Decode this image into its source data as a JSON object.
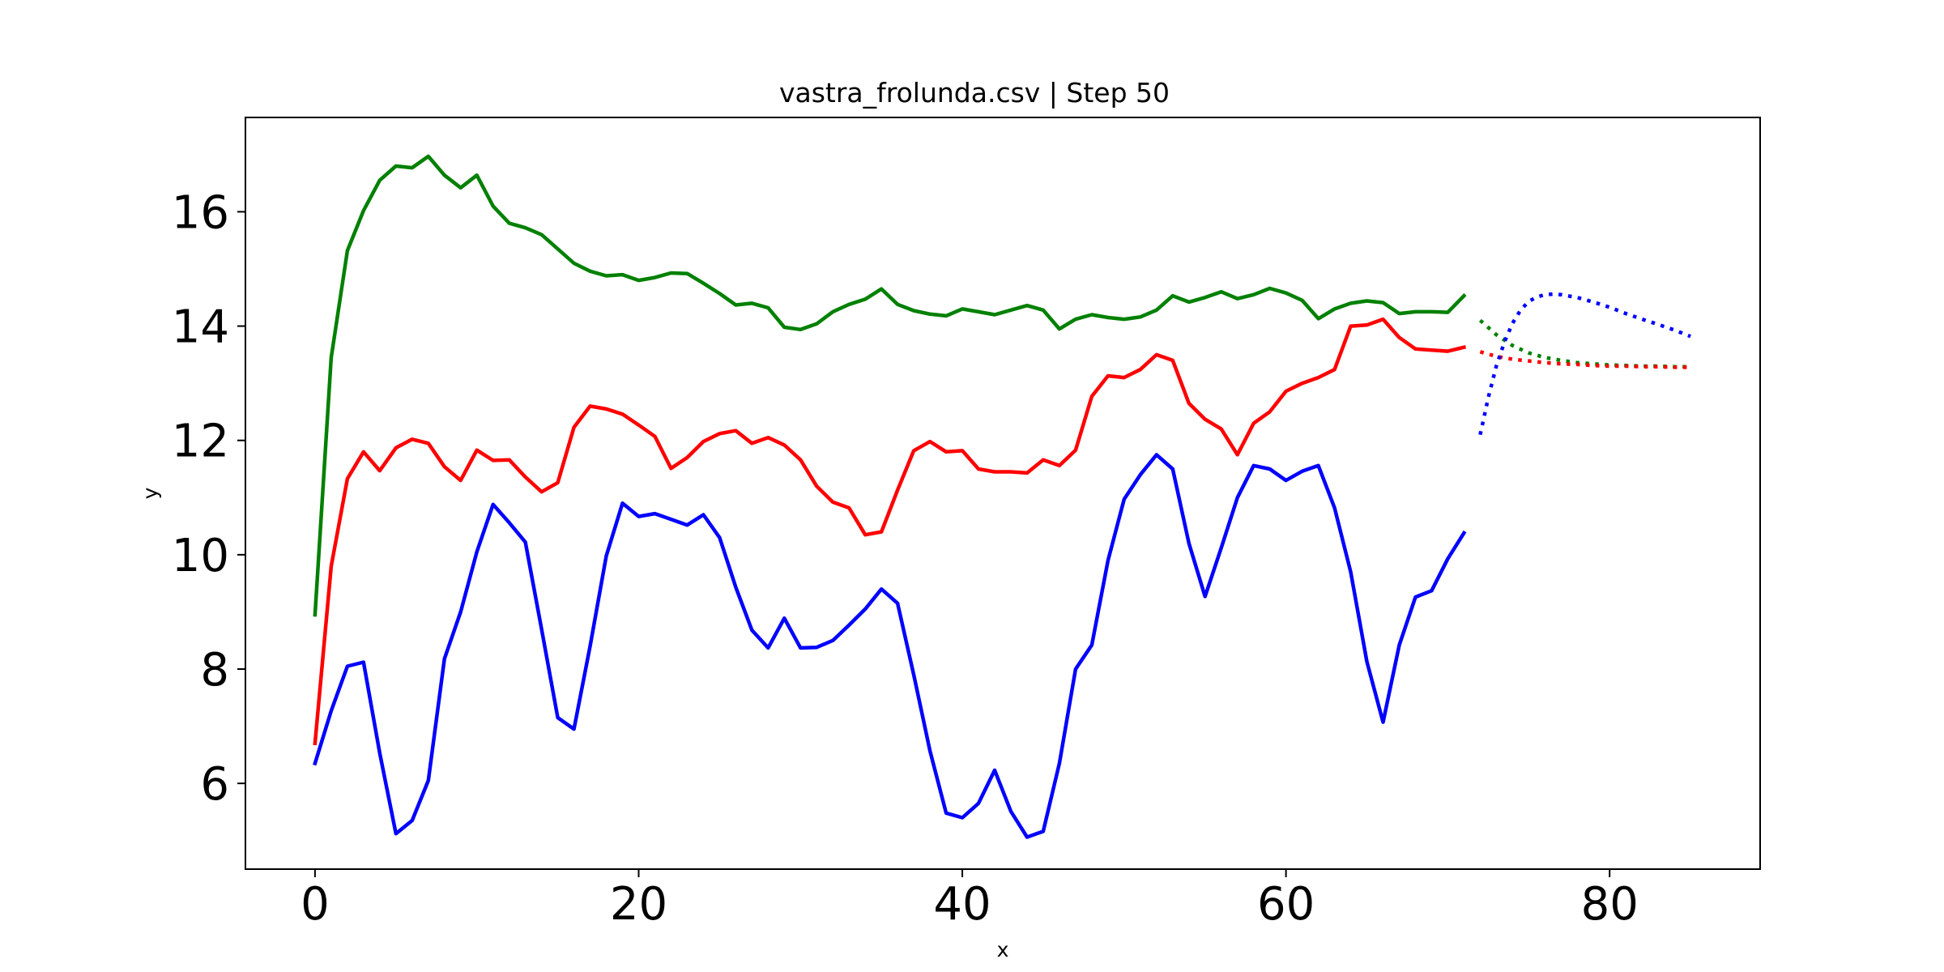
{
  "chart_data": {
    "type": "line",
    "title": "vastra_frolunda.csv | Step 50",
    "xlabel": "x",
    "ylabel": "y",
    "xlim": [
      -4.3,
      89.3
    ],
    "ylim": [
      4.5,
      17.65
    ],
    "xticks": [
      0,
      20,
      40,
      60,
      80
    ],
    "yticks": [
      6,
      8,
      10,
      12,
      14,
      16
    ],
    "grid": false,
    "legend": "none",
    "series": [
      {
        "color": "#008000",
        "style": "solid",
        "x": [
          0,
          1,
          2,
          3,
          4,
          5,
          6,
          7,
          8,
          9,
          10,
          11,
          12,
          13,
          14,
          15,
          16,
          17,
          18,
          19,
          20,
          21,
          22,
          23,
          24,
          25,
          26,
          27,
          28,
          29,
          30,
          31,
          32,
          33,
          34,
          35,
          36,
          37,
          38,
          39,
          40,
          41,
          42,
          43,
          44,
          45,
          46,
          47,
          48,
          49,
          50,
          51,
          52,
          53,
          54,
          55,
          56,
          57,
          58,
          59,
          60,
          61,
          62,
          63,
          64,
          65,
          66,
          67,
          68,
          69,
          70,
          71
        ],
        "y": [
          8.95,
          13.45,
          15.32,
          16.02,
          16.55,
          16.8,
          16.77,
          16.97,
          16.64,
          16.42,
          16.64,
          16.1,
          15.8,
          15.72,
          15.6,
          15.35,
          15.1,
          14.96,
          14.88,
          14.9,
          14.8,
          14.85,
          14.93,
          14.92,
          14.75,
          14.57,
          14.37,
          14.4,
          14.32,
          13.98,
          13.94,
          14.04,
          14.25,
          14.38,
          14.47,
          14.65,
          14.38,
          14.27,
          14.21,
          14.18,
          14.3,
          14.25,
          14.2,
          14.28,
          14.36,
          14.28,
          13.95,
          14.12,
          14.2,
          14.15,
          14.12,
          14.16,
          14.28,
          14.53,
          14.42,
          14.5,
          14.6,
          14.48,
          14.55,
          14.66,
          14.58,
          14.45,
          14.13,
          14.3,
          14.4,
          14.44,
          14.41,
          14.22,
          14.25,
          14.25,
          14.24,
          14.53
        ]
      },
      {
        "color": "#ff0000",
        "style": "solid",
        "x": [
          0,
          1,
          2,
          3,
          4,
          5,
          6,
          7,
          8,
          9,
          10,
          11,
          12,
          13,
          14,
          15,
          16,
          17,
          18,
          19,
          20,
          21,
          22,
          23,
          24,
          25,
          26,
          27,
          28,
          29,
          30,
          31,
          32,
          33,
          34,
          35,
          36,
          37,
          38,
          39,
          40,
          41,
          42,
          43,
          44,
          45,
          46,
          47,
          48,
          49,
          50,
          51,
          52,
          53,
          54,
          55,
          56,
          57,
          58,
          59,
          60,
          61,
          62,
          63,
          64,
          65,
          66,
          67,
          68,
          69,
          70,
          71
        ],
        "y": [
          6.7,
          9.8,
          11.33,
          11.8,
          11.47,
          11.87,
          12.02,
          11.95,
          11.54,
          11.3,
          11.83,
          11.65,
          11.66,
          11.36,
          11.1,
          11.26,
          12.23,
          12.6,
          12.55,
          12.46,
          12.27,
          12.07,
          11.51,
          11.7,
          11.98,
          12.12,
          12.17,
          11.95,
          12.05,
          11.92,
          11.66,
          11.2,
          10.92,
          10.82,
          10.35,
          10.4,
          11.13,
          11.82,
          11.98,
          11.8,
          11.82,
          11.5,
          11.45,
          11.45,
          11.43,
          11.66,
          11.56,
          11.83,
          12.77,
          13.13,
          13.1,
          13.24,
          13.5,
          13.4,
          12.65,
          12.37,
          12.2,
          11.75,
          12.3,
          12.5,
          12.86,
          13.0,
          13.1,
          13.24,
          14.0,
          14.02,
          14.12,
          13.8,
          13.6,
          13.58,
          13.56,
          13.63
        ]
      },
      {
        "color": "#0000ff",
        "style": "solid",
        "x": [
          0,
          1,
          2,
          3,
          4,
          5,
          6,
          7,
          8,
          9,
          10,
          11,
          12,
          13,
          14,
          15,
          16,
          17,
          18,
          19,
          20,
          21,
          22,
          23,
          24,
          25,
          26,
          27,
          28,
          29,
          30,
          31,
          32,
          33,
          34,
          35,
          36,
          37,
          38,
          39,
          40,
          41,
          42,
          43,
          44,
          45,
          46,
          47,
          48,
          49,
          50,
          51,
          52,
          53,
          54,
          55,
          56,
          57,
          58,
          59,
          60,
          61,
          62,
          63,
          64,
          65,
          66,
          67,
          68,
          69,
          70,
          71
        ],
        "y": [
          6.35,
          7.27,
          8.05,
          8.12,
          6.53,
          5.12,
          5.35,
          6.05,
          8.18,
          9.0,
          10.05,
          10.88,
          10.56,
          10.22,
          8.7,
          7.15,
          6.95,
          8.4,
          9.98,
          10.9,
          10.67,
          10.72,
          10.62,
          10.52,
          10.7,
          10.3,
          9.43,
          8.68,
          8.37,
          8.89,
          8.37,
          8.38,
          8.5,
          8.77,
          9.05,
          9.4,
          9.15,
          7.9,
          6.57,
          5.48,
          5.4,
          5.65,
          6.23,
          5.51,
          5.06,
          5.16,
          6.35,
          8.0,
          8.42,
          9.9,
          10.97,
          11.4,
          11.75,
          11.5,
          10.2,
          9.27,
          10.12,
          11.0,
          11.56,
          11.5,
          11.3,
          11.46,
          11.56,
          10.82,
          9.7,
          8.13,
          7.07,
          8.42,
          9.26,
          9.37,
          9.93,
          10.38
        ]
      },
      {
        "color": "#008000",
        "style": "dotted",
        "x": [
          72,
          73,
          74,
          75,
          76,
          77,
          78,
          79,
          80,
          81,
          82,
          83,
          84,
          85
        ],
        "y": [
          14.1,
          13.85,
          13.66,
          13.53,
          13.45,
          13.4,
          13.36,
          13.34,
          13.32,
          13.31,
          13.3,
          13.3,
          13.29,
          13.29
        ]
      },
      {
        "color": "#ff0000",
        "style": "dotted",
        "x": [
          72,
          73,
          74,
          75,
          76,
          77,
          78,
          79,
          80,
          81,
          82,
          83,
          84,
          85
        ],
        "y": [
          13.55,
          13.47,
          13.42,
          13.39,
          13.36,
          13.34,
          13.33,
          13.31,
          13.3,
          13.3,
          13.29,
          13.29,
          13.28,
          13.28
        ]
      },
      {
        "color": "#0000ff",
        "style": "dotted",
        "x": [
          72,
          72.5,
          73,
          73.5,
          74,
          74.5,
          75,
          75.5,
          76,
          76.5,
          77,
          78,
          79,
          80,
          81,
          82,
          83,
          84,
          85
        ],
        "y": [
          12.1,
          12.75,
          13.3,
          13.72,
          14.05,
          14.28,
          14.43,
          14.51,
          14.55,
          14.56,
          14.55,
          14.5,
          14.42,
          14.33,
          14.22,
          14.12,
          14.03,
          13.93,
          13.82
        ]
      }
    ]
  }
}
